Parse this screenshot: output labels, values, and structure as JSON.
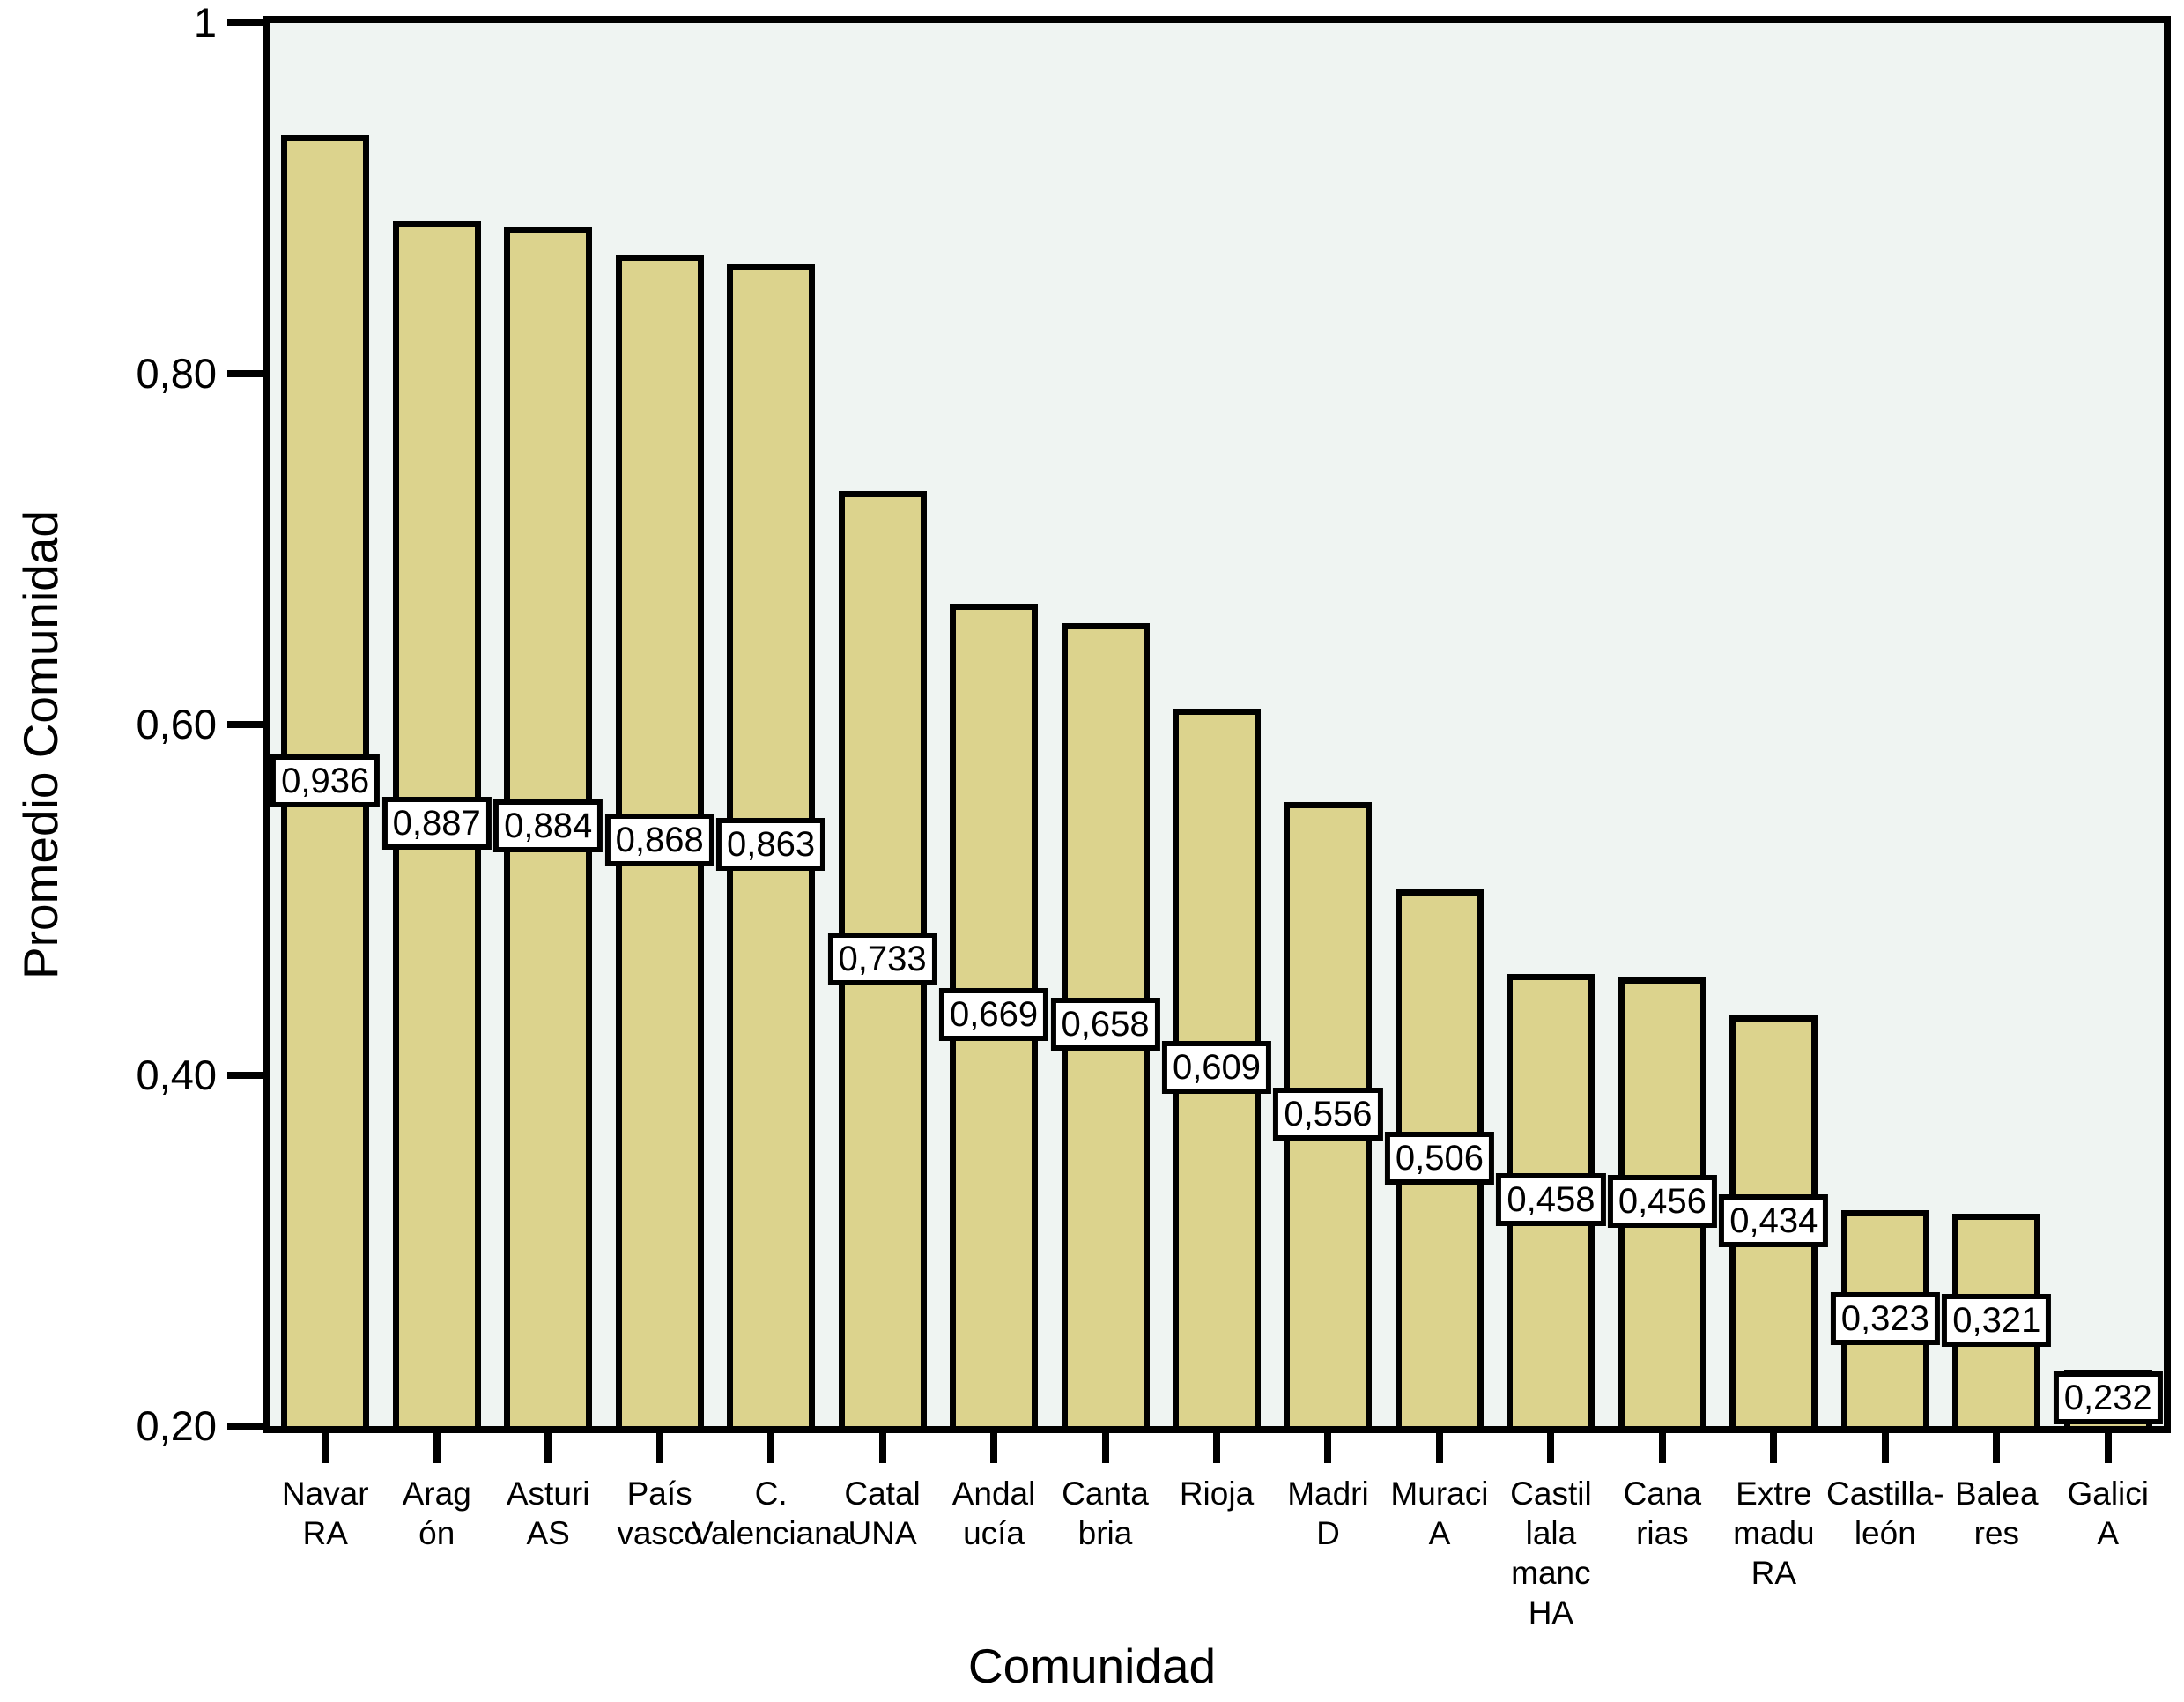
{
  "colors": {
    "figure_bg": "#ffffff",
    "plot_bg": "#eff4f2",
    "bar_fill": "#dcd38d",
    "bar_border": "#000000",
    "axis_color": "#000000",
    "value_box_bg": "#ffffff",
    "text_color": "#000000"
  },
  "chart_data": {
    "type": "bar",
    "title": "",
    "xlabel": "Comunidad",
    "ylabel": "Promedio Comunidad",
    "ylim": [
      0.2,
      1.0
    ],
    "grid": false,
    "legend": "none",
    "decimal_separator": ",",
    "y_ticks": [
      {
        "value": 1.0,
        "label": "1"
      },
      {
        "value": 0.8,
        "label": "0,80"
      },
      {
        "value": 0.6,
        "label": "0,60"
      },
      {
        "value": 0.4,
        "label": "0,40"
      },
      {
        "value": 0.2,
        "label": "0,20"
      }
    ],
    "bars": [
      {
        "category": "NavarRA",
        "label_lines": [
          "Navar",
          "RA"
        ],
        "value": 0.936,
        "value_label": "0,936"
      },
      {
        "category": "Aragón",
        "label_lines": [
          "Arag",
          "ón"
        ],
        "value": 0.887,
        "value_label": "0,887"
      },
      {
        "category": "AsturiAS",
        "label_lines": [
          "Asturi",
          "AS"
        ],
        "value": 0.884,
        "value_label": "0,884"
      },
      {
        "category": "País vasco",
        "label_lines": [
          "País",
          "vasco"
        ],
        "value": 0.868,
        "value_label": "0,868"
      },
      {
        "category": "C. Valenciana",
        "label_lines": [
          "C.",
          "Valenciana"
        ],
        "value": 0.863,
        "value_label": "0,863"
      },
      {
        "category": "CatalUNA",
        "label_lines": [
          "Catal",
          "UNA"
        ],
        "value": 0.733,
        "value_label": "0,733"
      },
      {
        "category": "Andalucía",
        "label_lines": [
          "Andal",
          "ucía"
        ],
        "value": 0.669,
        "value_label": "0,669"
      },
      {
        "category": "Cantabria",
        "label_lines": [
          "Canta",
          "bria"
        ],
        "value": 0.658,
        "value_label": "0,658"
      },
      {
        "category": "Rioja",
        "label_lines": [
          "Rioja"
        ],
        "value": 0.609,
        "value_label": "0,609"
      },
      {
        "category": "MadriD",
        "label_lines": [
          "Madri",
          "D"
        ],
        "value": 0.556,
        "value_label": "0,556"
      },
      {
        "category": "MuraciA",
        "label_lines": [
          "Muraci",
          "A"
        ],
        "value": 0.506,
        "value_label": "0,506"
      },
      {
        "category": "Castillala manchHA",
        "label_lines": [
          "Castil",
          "lala",
          "manc",
          "HA"
        ],
        "value": 0.458,
        "value_label": "0,458"
      },
      {
        "category": "Canarias",
        "label_lines": [
          "Cana",
          "rias"
        ],
        "value": 0.456,
        "value_label": "0,456"
      },
      {
        "category": "ExtremaduRA",
        "label_lines": [
          "Extre",
          "madu",
          "RA"
        ],
        "value": 0.434,
        "value_label": "0,434"
      },
      {
        "category": "Castilla-león",
        "label_lines": [
          "Castilla-",
          "león"
        ],
        "value": 0.323,
        "value_label": "0,323"
      },
      {
        "category": "Baleares",
        "label_lines": [
          "Balea",
          "res"
        ],
        "value": 0.321,
        "value_label": "0,321"
      },
      {
        "category": "GaliciA",
        "label_lines": [
          "Galici",
          "A"
        ],
        "value": 0.232,
        "value_label": "0,232"
      }
    ]
  }
}
